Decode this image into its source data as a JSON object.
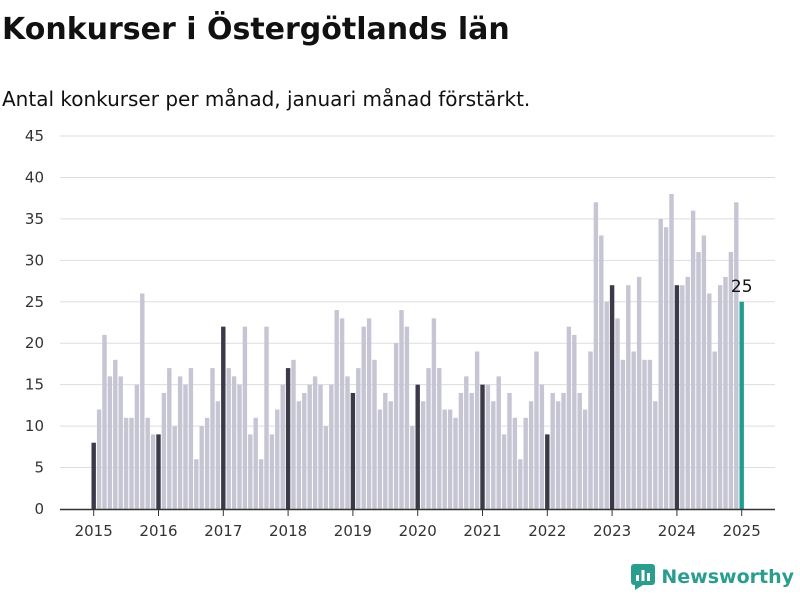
{
  "header": {
    "title": "Konkurser i Östergötlands län",
    "subtitle": "Antal konkurser per månad, januari månad förstärkt."
  },
  "brand": {
    "name": "Newsworthy"
  },
  "colors": {
    "regular": "#c6c5d3",
    "january": "#3b3a48",
    "latest": "#1f9e8f",
    "grid": "#dddddd",
    "axis": "#333333",
    "brand": "#2a9d8f"
  },
  "chart_data": {
    "type": "bar",
    "title": "Konkurser i Östergötlands län",
    "subtitle": "Antal konkurser per månad, januari månad förstärkt.",
    "xlabel": "",
    "ylabel": "",
    "ylim": [
      0,
      45
    ],
    "yticks": [
      0,
      5,
      10,
      15,
      20,
      25,
      30,
      35,
      40,
      45
    ],
    "xticks": [
      "2015",
      "2016",
      "2017",
      "2018",
      "2019",
      "2020",
      "2021",
      "2022",
      "2023",
      "2024",
      "2025"
    ],
    "grid": true,
    "highlight": "january",
    "start": "2015-01",
    "end": "2025-01",
    "annotation": {
      "period": "2025-01",
      "text": "25"
    },
    "values": [
      8,
      12,
      21,
      16,
      18,
      16,
      11,
      11,
      15,
      26,
      11,
      9,
      9,
      14,
      17,
      10,
      16,
      15,
      17,
      6,
      10,
      11,
      17,
      13,
      22,
      17,
      16,
      15,
      22,
      9,
      11,
      6,
      22,
      9,
      12,
      15,
      17,
      18,
      13,
      14,
      15,
      16,
      15,
      10,
      15,
      24,
      23,
      16,
      14,
      17,
      22,
      23,
      18,
      12,
      14,
      13,
      20,
      24,
      22,
      10,
      15,
      13,
      17,
      23,
      17,
      12,
      12,
      11,
      14,
      16,
      14,
      19,
      15,
      15,
      13,
      16,
      9,
      14,
      11,
      6,
      11,
      13,
      19,
      15,
      9,
      14,
      13,
      14,
      22,
      21,
      14,
      12,
      19,
      37,
      33,
      25,
      27,
      23,
      18,
      27,
      19,
      28,
      18,
      18,
      13,
      35,
      34,
      38,
      27,
      27,
      28,
      36,
      31,
      33,
      26,
      19,
      27,
      28,
      31,
      37,
      25
    ]
  }
}
